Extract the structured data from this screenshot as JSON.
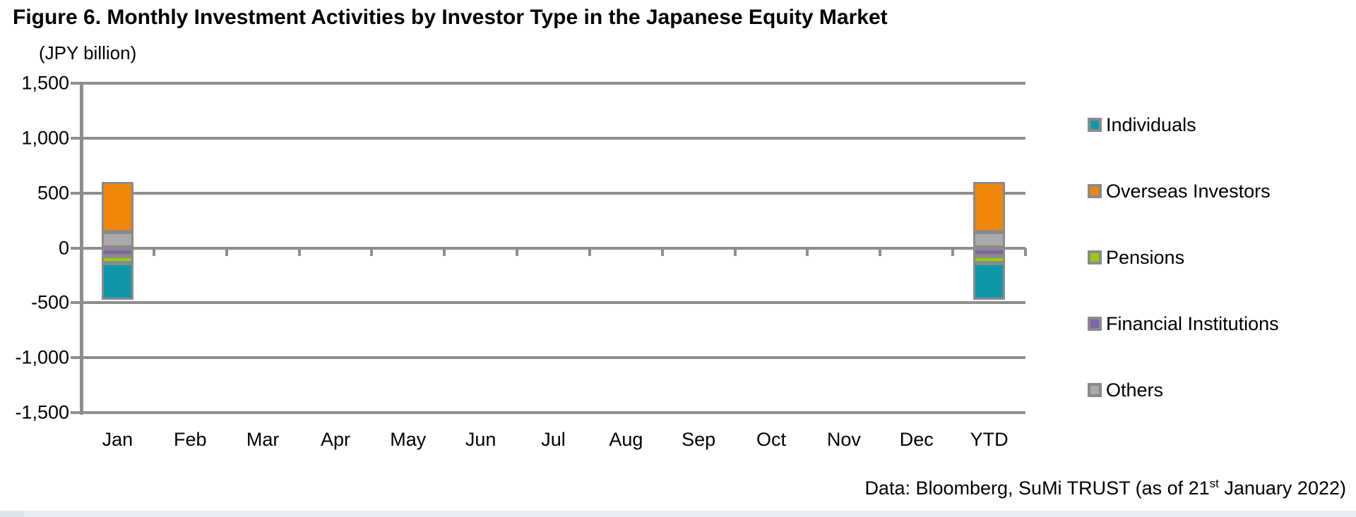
{
  "title": "Figure 6. Monthly Investment Activities by Investor Type in the Japanese Equity Market",
  "unit_label": "(JPY billion)",
  "source_note": {
    "prefix": "Data: Bloomberg, SuMi TRUST (as of 21",
    "superscript": "st",
    "suffix": " January 2022)"
  },
  "colors": {
    "grid": "#8e8e8e",
    "bar_border": "#8a8a8a",
    "individuals": "#1098aa",
    "overseas_investors": "#f0870a",
    "pensions": "#99cb0c",
    "financial_institutions": "#7e63a8",
    "others": "#ababab",
    "bottom_strip": "#e8edf3"
  },
  "chart_data": {
    "type": "bar",
    "stacked": true,
    "title": "Figure 6. Monthly Investment Activities by Investor Type in the Japanese Equity Market",
    "ylabel": "(JPY billion)",
    "ylim": [
      -1500,
      1500
    ],
    "ytick_interval": 500,
    "ytick_labels": [
      "1,500",
      "1,000",
      "500",
      "0",
      "-500",
      "-1,000",
      "-1,500"
    ],
    "grid": "horizontal",
    "legend_position": "right",
    "categories": [
      "Jan",
      "Feb",
      "Mar",
      "Apr",
      "May",
      "Jun",
      "Jul",
      "Aug",
      "Sep",
      "Oct",
      "Nov",
      "Dec",
      "YTD"
    ],
    "series": [
      {
        "name": "Individuals",
        "color": "#1098aa",
        "values": [
          -335,
          0,
          0,
          0,
          0,
          0,
          0,
          0,
          0,
          0,
          0,
          0,
          -335
        ]
      },
      {
        "name": "Overseas Investors",
        "color": "#f0870a",
        "values": [
          455,
          0,
          0,
          0,
          0,
          0,
          0,
          0,
          0,
          0,
          0,
          0,
          455
        ]
      },
      {
        "name": "Pensions",
        "color": "#99cb0c",
        "values": [
          -65,
          0,
          0,
          0,
          0,
          0,
          0,
          0,
          0,
          0,
          0,
          0,
          -65
        ]
      },
      {
        "name": "Financial Institutions",
        "color": "#7e63a8",
        "values": [
          -75,
          0,
          0,
          0,
          0,
          0,
          0,
          0,
          0,
          0,
          0,
          0,
          -75
        ]
      },
      {
        "name": "Others",
        "color": "#ababab",
        "values": [
          145,
          0,
          0,
          0,
          0,
          0,
          0,
          0,
          0,
          0,
          0,
          0,
          145
        ]
      }
    ],
    "stacking_note": "segments stack outward from zero in reverse legend order (Others/Financial Institutions nearest zero)"
  }
}
